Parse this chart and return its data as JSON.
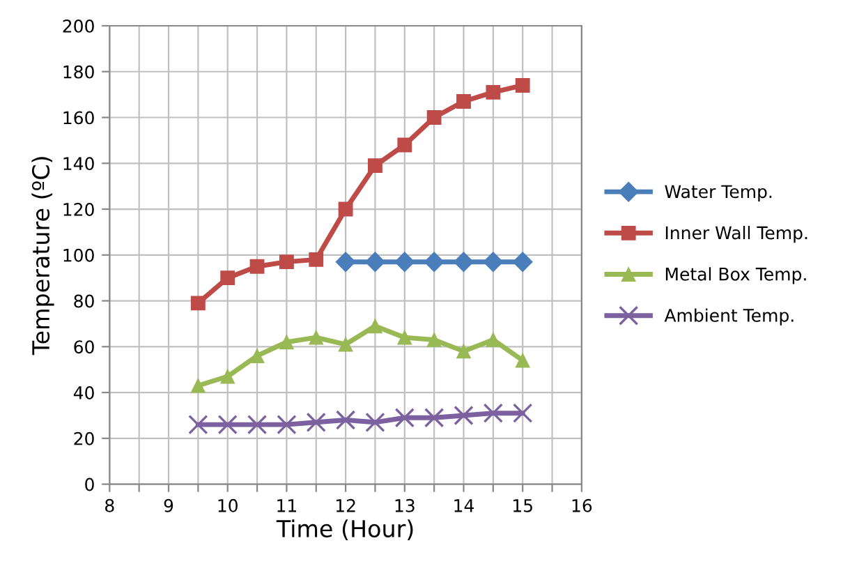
{
  "chart_data": {
    "type": "line",
    "xlabel": "Time (Hour)",
    "ylabel": "Temperature (ºC)",
    "x": [
      9.5,
      10,
      10.5,
      11,
      11.5,
      12,
      12.5,
      13,
      13.5,
      14,
      14.5,
      15
    ],
    "series": [
      {
        "name": "Water Temp.",
        "color": "#4a7ebb",
        "marker": "diamond",
        "values": [
          null,
          null,
          null,
          null,
          null,
          97,
          97,
          97,
          97,
          97,
          97,
          97
        ]
      },
      {
        "name": "Inner Wall Temp.",
        "color": "#be4b48",
        "marker": "square",
        "values": [
          79,
          90,
          95,
          97,
          98,
          120,
          139,
          148,
          160,
          167,
          171,
          174
        ]
      },
      {
        "name": "Metal Box Temp.",
        "color": "#98b954",
        "marker": "triangle",
        "values": [
          43,
          47,
          56,
          62,
          64,
          61,
          69,
          64,
          63,
          58,
          63,
          54
        ]
      },
      {
        "name": "Ambient Temp.",
        "color": "#7d60a0",
        "marker": "cross",
        "values": [
          26,
          26,
          26,
          26,
          27,
          28,
          27,
          29,
          29,
          30,
          31,
          31
        ]
      }
    ],
    "xlim": [
      8,
      16
    ],
    "ylim": [
      0,
      200
    ],
    "xticks": [
      8,
      {
        "value": 8.5,
        "label": null
      },
      9,
      {
        "value": 9.5,
        "label": null
      },
      10,
      {
        "value": 10.5,
        "label": null
      },
      11,
      {
        "value": 11.5,
        "label": null
      },
      12,
      {
        "value": 12.5,
        "label": null
      },
      13,
      {
        "value": 13.5,
        "label": null
      },
      14,
      {
        "value": 14.5,
        "label": null
      },
      15,
      {
        "value": 15.5,
        "label": null
      },
      16
    ],
    "yticks": [
      0,
      20,
      40,
      60,
      80,
      100,
      120,
      140,
      160,
      180,
      200
    ],
    "grid": true,
    "legend": "right",
    "line_style": "solid"
  }
}
